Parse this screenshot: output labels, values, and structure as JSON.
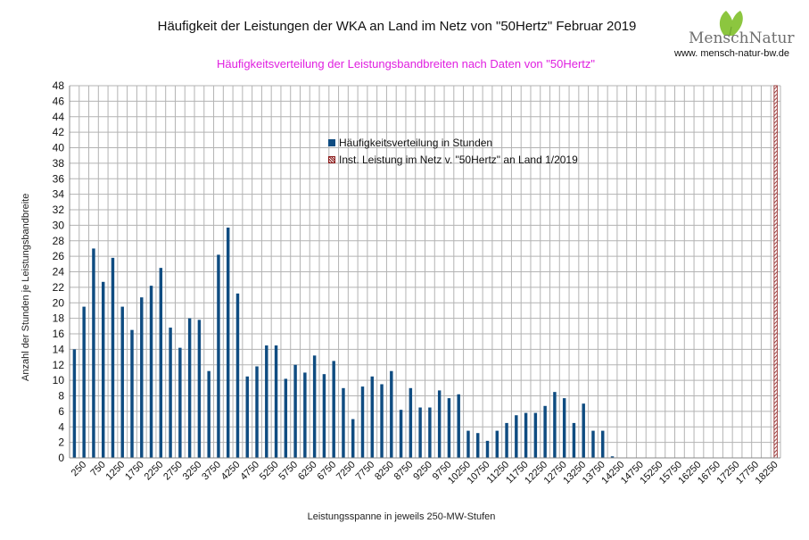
{
  "title": "Häufigkeit der Leistungen der WKA an Land im Netz von \"50Hertz\" Februar 2019",
  "subtitle": "Häufigkeitsverteilung der Leistungsbandbreiten nach Daten von \"50Hertz\"",
  "logo": {
    "name": "MenschNatur",
    "url": "www. mensch-natur-bw.de",
    "leaf_color": "#8cc63f"
  },
  "chart_data": {
    "type": "bar",
    "title": "Häufigkeit der Leistungen der WKA an Land im Netz von \"50Hertz\" Februar 2019",
    "xlabel": "Leistungsspanne in jeweils 250-MW-Stufen",
    "ylabel": "Anzahl der Stunden je Leistungsbandbreite",
    "ylim": [
      0,
      48
    ],
    "yticks": [
      0,
      2,
      4,
      6,
      8,
      10,
      12,
      14,
      16,
      18,
      20,
      22,
      24,
      26,
      28,
      30,
      32,
      34,
      36,
      38,
      40,
      42,
      44,
      46,
      48
    ],
    "grid": true,
    "legend_position": "top-center",
    "xticks": [
      "250",
      "750",
      "1250",
      "1750",
      "2250",
      "2750",
      "3250",
      "3750",
      "4250",
      "4750",
      "5250",
      "5750",
      "6250",
      "6750",
      "7250",
      "7750",
      "8250",
      "8750",
      "9250",
      "9750",
      "10250",
      "10750",
      "11250",
      "11750",
      "12250",
      "12750",
      "13250",
      "13750",
      "14250",
      "14750",
      "15250",
      "15750",
      "16250",
      "16750",
      "17250",
      "17750",
      "18250"
    ],
    "x": [
      0,
      250,
      500,
      750,
      1000,
      1250,
      1500,
      1750,
      2000,
      2250,
      2500,
      2750,
      3000,
      3250,
      3500,
      3750,
      4000,
      4250,
      4500,
      4750,
      5000,
      5250,
      5500,
      5750,
      6000,
      6250,
      6500,
      6750,
      7000,
      7250,
      7500,
      7750,
      8000,
      8250,
      8500,
      8750,
      9000,
      9250,
      9500,
      9750,
      10000,
      10250,
      10500,
      10750,
      11000,
      11250,
      11500,
      11750,
      12000,
      12250,
      12500,
      12750,
      13000,
      13250,
      13500,
      13750,
      14000,
      14250,
      14500,
      14750,
      15000,
      15250,
      15500,
      15750,
      16000,
      16250,
      16500,
      16750,
      17000,
      17250,
      17500,
      17750,
      18000,
      18250
    ],
    "series": [
      {
        "name": "Häufigkeitsverteilung in Stunden",
        "color": "#0f4c81",
        "values": [
          14,
          19.5,
          27,
          22.7,
          25.8,
          19.5,
          16.5,
          20.7,
          22.2,
          24.5,
          16.8,
          14.2,
          18,
          17.8,
          11.2,
          26.2,
          29.7,
          21.2,
          10.5,
          11.8,
          14.5,
          14.5,
          10.2,
          12,
          11,
          13.2,
          10.8,
          12.5,
          9,
          5,
          9.2,
          10.5,
          9.5,
          11.2,
          6.2,
          9,
          6.5,
          6.5,
          8.7,
          7.7,
          8.2,
          3.5,
          3.2,
          2.2,
          3.5,
          4.5,
          5.5,
          5.8,
          5.8,
          6.7,
          8.5,
          7.7,
          4.5,
          7,
          3.5,
          3.5,
          0.2,
          0,
          0,
          0,
          0,
          0,
          0,
          0,
          0,
          0,
          0,
          0,
          0,
          0,
          0,
          0,
          0,
          0
        ]
      },
      {
        "name": "Inst. Leistung im Netz v. \"50Hertz\" an Land 1/2019",
        "color": "#8b1a1a",
        "pattern": "hatched",
        "x_value": 18250,
        "value": 48
      }
    ]
  }
}
